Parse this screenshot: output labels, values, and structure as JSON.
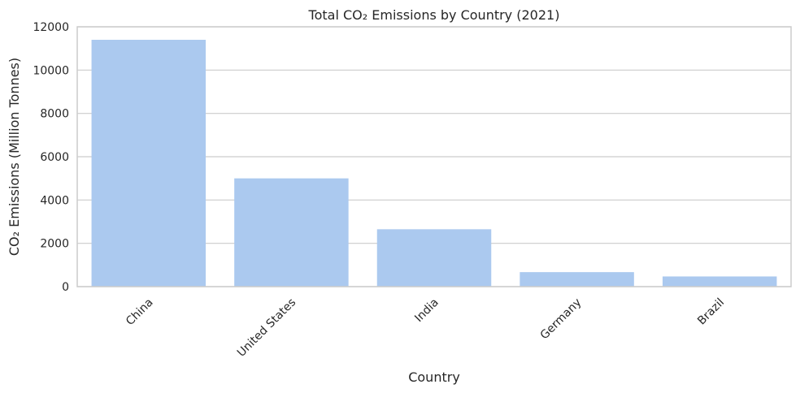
{
  "chart_data": {
    "type": "bar",
    "title": "Total CO₂ Emissions by Country (2021)",
    "xlabel": "Country",
    "ylabel": "CO₂ Emissions (Million Tonnes)",
    "categories": [
      "China",
      "United States",
      "India",
      "Germany",
      "Brazil"
    ],
    "values": [
      11400,
      5000,
      2650,
      670,
      470
    ],
    "ylim": [
      0,
      12000
    ],
    "yticks": [
      0,
      2000,
      4000,
      6000,
      8000,
      10000,
      12000
    ],
    "grid": "horizontal",
    "bar_color": "#abc9ef",
    "grid_color": "#cccccc",
    "tick_rotation_deg": -45
  }
}
